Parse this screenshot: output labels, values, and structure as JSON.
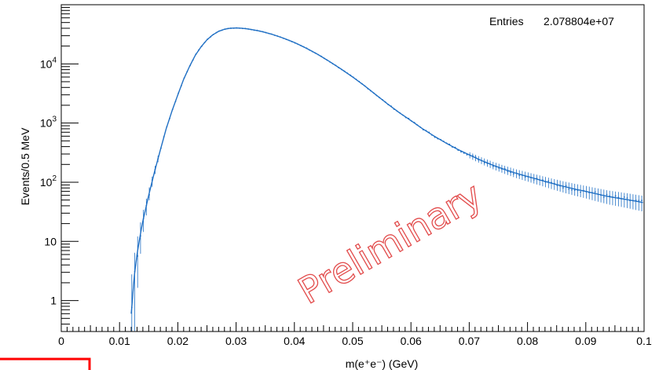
{
  "chart_data": {
    "type": "scatter",
    "xlabel": "m(e⁺e⁻) (GeV)",
    "ylabel": "Events/0.5 MeV",
    "xlim": [
      0,
      0.1
    ],
    "ylim": [
      0.3,
      100000
    ],
    "y_scale": "log",
    "x_ticks": [
      {
        "v": 0,
        "label": "0"
      },
      {
        "v": 0.01,
        "label": "0.01"
      },
      {
        "v": 0.02,
        "label": "0.02"
      },
      {
        "v": 0.03,
        "label": "0.03"
      },
      {
        "v": 0.04,
        "label": "0.04"
      },
      {
        "v": 0.05,
        "label": "0.05"
      },
      {
        "v": 0.06,
        "label": "0.06"
      },
      {
        "v": 0.07,
        "label": "0.07"
      },
      {
        "v": 0.08,
        "label": "0.08"
      },
      {
        "v": 0.09,
        "label": "0.09"
      },
      {
        "v": 0.1,
        "label": "0.1"
      }
    ],
    "y_ticks": [
      {
        "v": 1,
        "label": "1"
      },
      {
        "v": 10,
        "label": "10"
      },
      {
        "v": 100,
        "label": "10²"
      },
      {
        "v": 1000,
        "label": "10³"
      },
      {
        "v": 10000,
        "label": "10⁴"
      }
    ],
    "grid": false,
    "stats_box": {
      "label": "Entries",
      "value": "2.078804e+07"
    },
    "series_color": "#1f6fc4",
    "data_points": [
      [
        0.012,
        0.6
      ],
      [
        0.0122,
        1.0
      ],
      [
        0.0125,
        2.5
      ],
      [
        0.013,
        6
      ],
      [
        0.0135,
        12
      ],
      [
        0.014,
        22
      ],
      [
        0.015,
        60
      ],
      [
        0.016,
        150
      ],
      [
        0.017,
        350
      ],
      [
        0.018,
        800
      ],
      [
        0.019,
        1600
      ],
      [
        0.02,
        3000
      ],
      [
        0.021,
        5500
      ],
      [
        0.022,
        9000
      ],
      [
        0.023,
        14000
      ],
      [
        0.024,
        19500
      ],
      [
        0.025,
        25500
      ],
      [
        0.026,
        31000
      ],
      [
        0.027,
        35500
      ],
      [
        0.028,
        38500
      ],
      [
        0.029,
        40000
      ],
      [
        0.03,
        40500
      ],
      [
        0.031,
        40000
      ],
      [
        0.032,
        39000
      ],
      [
        0.034,
        36000
      ],
      [
        0.036,
        32000
      ],
      [
        0.038,
        27500
      ],
      [
        0.04,
        23000
      ],
      [
        0.042,
        18500
      ],
      [
        0.044,
        14500
      ],
      [
        0.046,
        11000
      ],
      [
        0.048,
        8200
      ],
      [
        0.05,
        6000
      ],
      [
        0.052,
        4300
      ],
      [
        0.054,
        3000
      ],
      [
        0.056,
        2100
      ],
      [
        0.058,
        1500
      ],
      [
        0.06,
        1100
      ],
      [
        0.062,
        800
      ],
      [
        0.064,
        600
      ],
      [
        0.066,
        460
      ],
      [
        0.068,
        360
      ],
      [
        0.07,
        290
      ],
      [
        0.072,
        235
      ],
      [
        0.074,
        195
      ],
      [
        0.076,
        165
      ],
      [
        0.078,
        142
      ],
      [
        0.08,
        125
      ],
      [
        0.082,
        110
      ],
      [
        0.084,
        97
      ],
      [
        0.086,
        86
      ],
      [
        0.088,
        77
      ],
      [
        0.09,
        70
      ],
      [
        0.092,
        63
      ],
      [
        0.094,
        57
      ],
      [
        0.096,
        53
      ],
      [
        0.098,
        49
      ],
      [
        0.1,
        45
      ]
    ]
  },
  "watermark": {
    "text": "Preliminary",
    "color": "#e24b4b"
  },
  "annotation_box_color": "#ff0000"
}
